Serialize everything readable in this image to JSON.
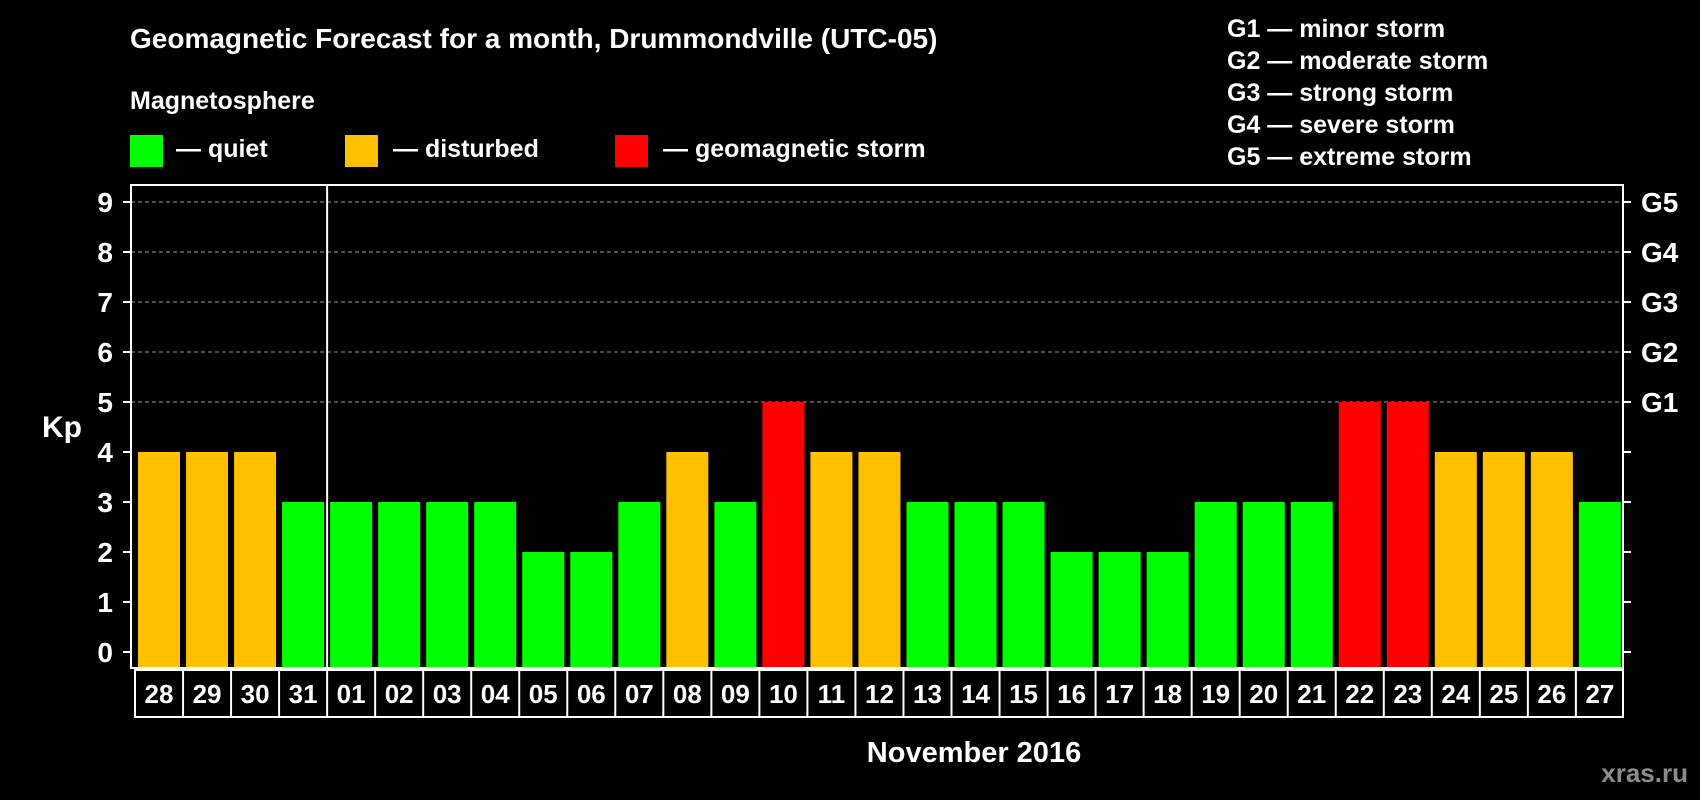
{
  "title": "Geomagnetic Forecast for a month, Drummondville (UTC-05)",
  "legend": {
    "heading": "Magnetosphere",
    "items": [
      {
        "label": "— quiet",
        "color": "#00ff00"
      },
      {
        "label": "— disturbed",
        "color": "#ffc000"
      },
      {
        "label": "— geomagnetic storm",
        "color": "#ff0000"
      }
    ]
  },
  "storm_scale": [
    "G1 — minor storm",
    "G2 — moderate storm",
    "G3 — strong storm",
    "G4 — severe storm",
    "G5 — extreme storm"
  ],
  "watermark": "xras.ru",
  "colors": {
    "background": "#000000",
    "quiet": "#00ff00",
    "disturbed": "#ffc000",
    "storm": "#ff0000",
    "axis": "#ffffff",
    "grid": "#9a9a9a"
  },
  "chart_data": {
    "type": "bar",
    "xlabel": "November 2016",
    "ylabel": "Kp",
    "ylim": [
      0,
      9
    ],
    "yticks": [
      "0",
      "1",
      "2",
      "3",
      "4",
      "5",
      "6",
      "7",
      "8",
      "9"
    ],
    "right_axis_labels": [
      {
        "kp": 5,
        "label": "G1"
      },
      {
        "kp": 6,
        "label": "G2"
      },
      {
        "kp": 7,
        "label": "G3"
      },
      {
        "kp": 8,
        "label": "G4"
      },
      {
        "kp": 9,
        "label": "G5"
      }
    ],
    "grid": true,
    "month_divider_after": "31",
    "categories": [
      "28",
      "29",
      "30",
      "31",
      "01",
      "02",
      "03",
      "04",
      "05",
      "06",
      "07",
      "08",
      "09",
      "10",
      "11",
      "12",
      "13",
      "14",
      "15",
      "16",
      "17",
      "18",
      "19",
      "20",
      "21",
      "22",
      "23",
      "24",
      "25",
      "26",
      "27"
    ],
    "values": [
      4,
      4,
      4,
      3,
      3,
      3,
      3,
      3,
      2,
      2,
      3,
      4,
      3,
      5,
      4,
      4,
      3,
      3,
      3,
      2,
      2,
      2,
      3,
      3,
      3,
      5,
      5,
      4,
      4,
      4,
      3
    ],
    "levels": [
      "disturbed",
      "disturbed",
      "disturbed",
      "quiet",
      "quiet",
      "quiet",
      "quiet",
      "quiet",
      "quiet",
      "quiet",
      "quiet",
      "disturbed",
      "quiet",
      "storm",
      "disturbed",
      "disturbed",
      "quiet",
      "quiet",
      "quiet",
      "quiet",
      "quiet",
      "quiet",
      "quiet",
      "quiet",
      "quiet",
      "storm",
      "storm",
      "disturbed",
      "disturbed",
      "disturbed",
      "quiet"
    ]
  }
}
